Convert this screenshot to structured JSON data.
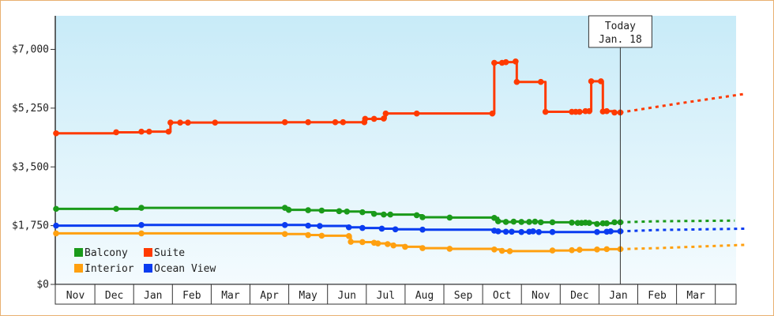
{
  "chart_data": {
    "type": "line",
    "y_unit": "$",
    "ylim": [
      0,
      8000
    ],
    "yticks": [
      {
        "value": 0,
        "label": "$0"
      },
      {
        "value": 1750,
        "label": "$1,750"
      },
      {
        "value": 3500,
        "label": "$3,500"
      },
      {
        "value": 5250,
        "label": "$5,250"
      },
      {
        "value": 7000,
        "label": "$7,000"
      }
    ],
    "x_months": [
      "Nov",
      "Dec",
      "Jan",
      "Feb",
      "Mar",
      "Apr",
      "May",
      "Jun",
      "Jul",
      "Aug",
      "Sep",
      "Oct",
      "Nov",
      "Dec",
      "Jan",
      "Feb",
      "Mar"
    ],
    "today": {
      "line1": "Today",
      "line2": "Jan. 18",
      "x": 14.55
    },
    "grid": false,
    "legend_position": "bottom-left",
    "series": [
      {
        "name": "Balcony",
        "color": "#1a9a1a",
        "points": [
          [
            0.0,
            2250
          ],
          [
            1.55,
            2250
          ],
          [
            2.2,
            2280
          ],
          [
            5.9,
            2280
          ],
          [
            6.0,
            2220
          ],
          [
            6.5,
            2210
          ],
          [
            6.85,
            2200
          ],
          [
            7.3,
            2180
          ],
          [
            7.5,
            2170
          ],
          [
            7.9,
            2150
          ],
          [
            8.2,
            2100
          ],
          [
            8.45,
            2080
          ],
          [
            8.62,
            2080
          ],
          [
            9.3,
            2060
          ],
          [
            9.45,
            2000
          ],
          [
            10.15,
            1990
          ],
          [
            11.3,
            1980
          ],
          [
            11.4,
            1880
          ],
          [
            11.6,
            1860
          ],
          [
            11.8,
            1870
          ],
          [
            12.0,
            1860
          ],
          [
            12.2,
            1860
          ],
          [
            12.35,
            1870
          ],
          [
            12.5,
            1850
          ],
          [
            12.8,
            1850
          ],
          [
            13.3,
            1840
          ],
          [
            13.45,
            1830
          ],
          [
            13.55,
            1830
          ],
          [
            13.65,
            1840
          ],
          [
            13.75,
            1830
          ],
          [
            13.95,
            1800
          ],
          [
            14.1,
            1820
          ],
          [
            14.2,
            1820
          ],
          [
            14.4,
            1850
          ],
          [
            14.55,
            1850
          ]
        ],
        "projection": [
          [
            14.55,
            1850
          ],
          [
            15.5,
            1880
          ],
          [
            17.5,
            1900
          ]
        ]
      },
      {
        "name": "Suite",
        "color": "#ff3a00",
        "points": [
          [
            0.0,
            4500
          ],
          [
            1.55,
            4530
          ],
          [
            2.2,
            4550
          ],
          [
            2.4,
            4550
          ],
          [
            2.9,
            4550
          ],
          [
            2.95,
            4820
          ],
          [
            3.2,
            4820
          ],
          [
            3.4,
            4820
          ],
          [
            4.1,
            4820
          ],
          [
            5.9,
            4830
          ],
          [
            6.5,
            4830
          ],
          [
            7.2,
            4830
          ],
          [
            7.4,
            4830
          ],
          [
            7.95,
            4830
          ],
          [
            7.97,
            4930
          ],
          [
            8.2,
            4930
          ],
          [
            8.45,
            4940
          ],
          [
            8.5,
            5090
          ],
          [
            9.3,
            5090
          ],
          [
            11.25,
            5090
          ],
          [
            11.3,
            6600
          ],
          [
            11.5,
            6600
          ],
          [
            11.6,
            6620
          ],
          [
            11.85,
            6640
          ],
          [
            11.88,
            6030
          ],
          [
            12.5,
            6030
          ],
          [
            12.62,
            5140
          ],
          [
            13.3,
            5140
          ],
          [
            13.4,
            5140
          ],
          [
            13.5,
            5140
          ],
          [
            13.65,
            5160
          ],
          [
            13.75,
            5160
          ],
          [
            13.8,
            6050
          ],
          [
            14.05,
            6050
          ],
          [
            14.1,
            5150
          ],
          [
            14.2,
            5160
          ],
          [
            14.4,
            5120
          ],
          [
            14.55,
            5120
          ]
        ],
        "projection": [
          [
            14.55,
            5120
          ],
          [
            16.0,
            5380
          ],
          [
            17.8,
            5680
          ]
        ]
      },
      {
        "name": "Interior",
        "color": "#ffa010",
        "points": [
          [
            0.0,
            1520
          ],
          [
            2.2,
            1520
          ],
          [
            5.9,
            1500
          ],
          [
            6.5,
            1470
          ],
          [
            6.85,
            1450
          ],
          [
            7.55,
            1440
          ],
          [
            7.6,
            1270
          ],
          [
            7.9,
            1260
          ],
          [
            8.2,
            1240
          ],
          [
            8.3,
            1220
          ],
          [
            8.55,
            1200
          ],
          [
            8.7,
            1160
          ],
          [
            9.0,
            1120
          ],
          [
            9.45,
            1080
          ],
          [
            10.15,
            1060
          ],
          [
            11.3,
            1040
          ],
          [
            11.5,
            1000
          ],
          [
            11.7,
            990
          ],
          [
            12.8,
            1010
          ],
          [
            13.3,
            1020
          ],
          [
            13.5,
            1030
          ],
          [
            13.95,
            1040
          ],
          [
            14.2,
            1050
          ],
          [
            14.55,
            1050
          ]
        ],
        "projection": [
          [
            14.55,
            1050
          ],
          [
            15.5,
            1080
          ],
          [
            17.8,
            1180
          ]
        ]
      },
      {
        "name": "Ocean View",
        "color": "#0a3cf0",
        "points": [
          [
            0.0,
            1750
          ],
          [
            2.2,
            1770
          ],
          [
            5.9,
            1770
          ],
          [
            6.5,
            1750
          ],
          [
            6.8,
            1740
          ],
          [
            7.55,
            1700
          ],
          [
            7.9,
            1680
          ],
          [
            8.4,
            1660
          ],
          [
            8.75,
            1640
          ],
          [
            9.45,
            1630
          ],
          [
            11.3,
            1600
          ],
          [
            11.4,
            1580
          ],
          [
            11.6,
            1570
          ],
          [
            11.75,
            1570
          ],
          [
            12.0,
            1560
          ],
          [
            12.2,
            1570
          ],
          [
            12.3,
            1580
          ],
          [
            12.45,
            1560
          ],
          [
            12.8,
            1560
          ],
          [
            13.95,
            1560
          ],
          [
            14.2,
            1570
          ],
          [
            14.3,
            1580
          ],
          [
            14.55,
            1580
          ]
        ],
        "projection": [
          [
            14.55,
            1580
          ],
          [
            15.5,
            1620
          ],
          [
            17.8,
            1660
          ]
        ]
      }
    ]
  }
}
